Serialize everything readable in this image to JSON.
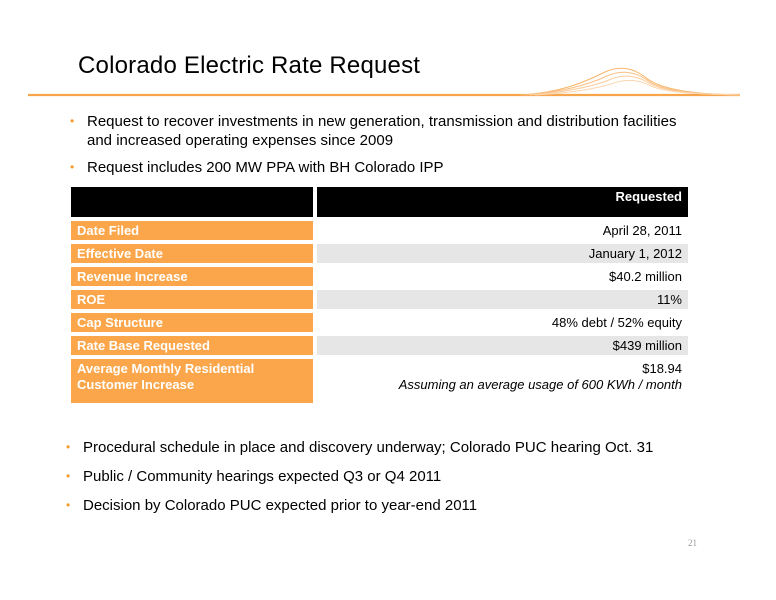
{
  "title": "Colorado Electric Rate Request",
  "top_bullets": [
    "Request to recover investments in new generation, transmission and distribution facilities and increased operating expenses since 2009",
    "Request includes 200 MW PPA with BH Colorado IPP"
  ],
  "table": {
    "header_label": "",
    "header_value": "Requested",
    "rows": [
      {
        "label": "Date Filed",
        "value": "April 28, 2011"
      },
      {
        "label": "Effective Date",
        "value": "January 1, 2012"
      },
      {
        "label": "Revenue Increase",
        "value": "$40.2 million"
      },
      {
        "label": "ROE",
        "value": "11%"
      },
      {
        "label": "Cap Structure",
        "value": "48% debt / 52% equity"
      },
      {
        "label": "Rate Base Requested",
        "value": "$439 million"
      },
      {
        "label": "Average Monthly Residential Customer  Increase",
        "value": "$18.94",
        "note": "Assuming an average usage of 600 KWh / month"
      }
    ]
  },
  "bottom_bullets": [
    "Procedural schedule in place and discovery underway; Colorado PUC hearing Oct. 31",
    "Public / Community hearings expected Q3 or Q4 2011",
    "Decision by Colorado PUC expected prior to year-end 2011"
  ],
  "page_number": "21",
  "colors": {
    "accent": "#f39c2c",
    "label_fill": "#fba64a",
    "header_fill": "#000000",
    "stripe": "#e6e6e6"
  }
}
